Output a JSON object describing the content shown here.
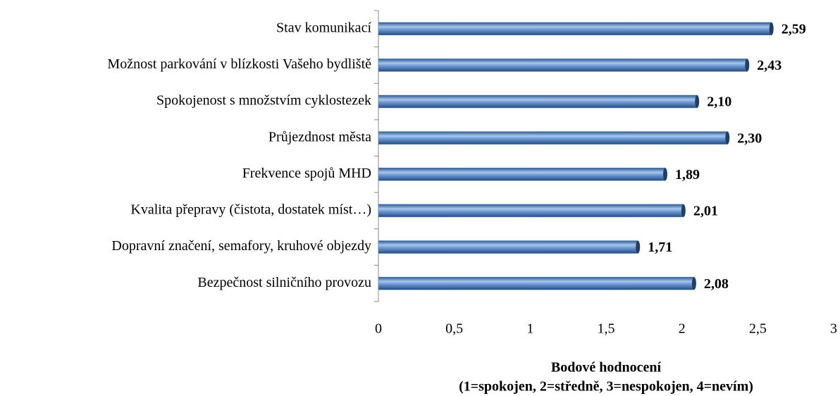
{
  "chart_data": {
    "type": "hbar",
    "categories": [
      "Stav komunikací",
      "Možnost parkování v blízkosti Vašeho bydliště",
      "Spokojenost s množstvím cyklostezek",
      "Průjezdnost města",
      "Frekvence spojů MHD",
      "Kvalita přepravy (čistota, dostatek míst…)",
      "Dopravní značení, semafory, kruhové objezdy",
      "Bezpečnost silničního provozu"
    ],
    "values": [
      2.59,
      2.43,
      2.1,
      2.3,
      1.89,
      2.01,
      1.71,
      2.08
    ],
    "value_labels": [
      "2,59",
      "2,43",
      "2,10",
      "2,30",
      "1,89",
      "2,01",
      "1,71",
      "2,08"
    ],
    "color": "#4f81bd",
    "xlim": [
      0,
      3
    ],
    "xticks": [
      0,
      {
        "value": 0.5,
        "label": "0,5"
      },
      1,
      {
        "value": 1.5,
        "label": "1,5"
      },
      2,
      {
        "value": 2.5,
        "label": "2,5"
      },
      3
    ],
    "xlabel": [
      "Bodové hodnocení",
      "(1=spokojen, 2=středně, 3=nespokojen, 4=nevím)"
    ],
    "grid": false
  }
}
